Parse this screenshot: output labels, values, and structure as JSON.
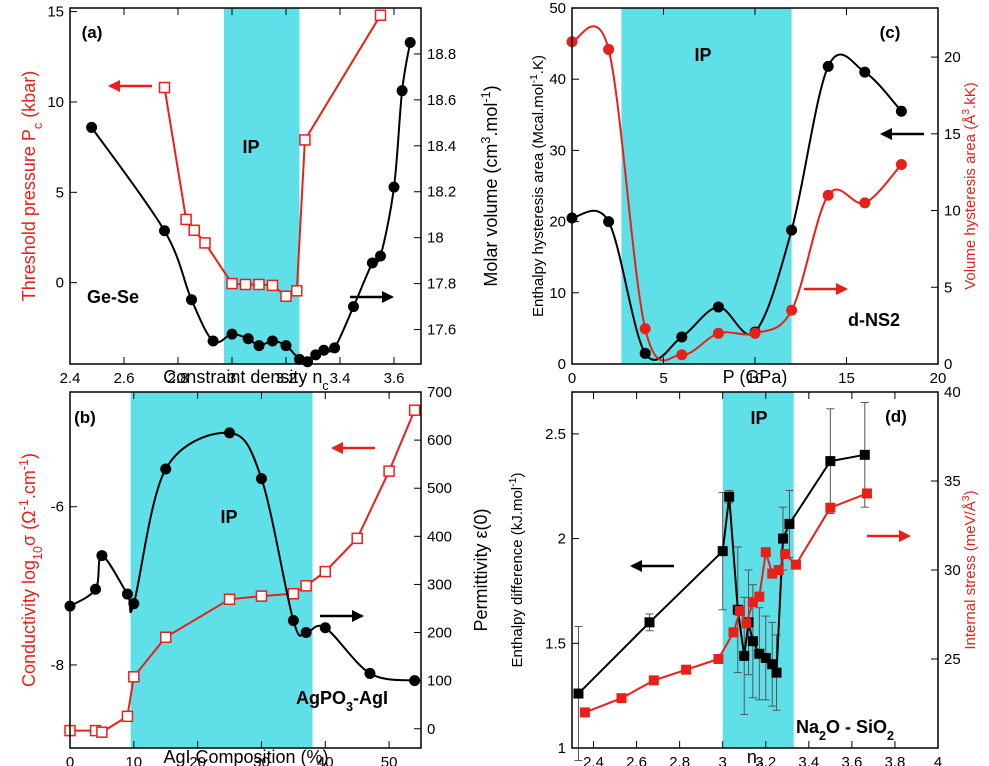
{
  "colors": {
    "black": "#000000",
    "red": "#e8201a",
    "band": "#5fe0e8"
  },
  "chart_data": [
    {
      "type": "line",
      "panel": "(a)",
      "system": "Ge-Se",
      "band_label": "IP",
      "xlabel": "Constraint density n",
      "xlabel_sub": "c",
      "ylabel_left": "Threshold pressure P",
      "ylabel_left_sub": "c",
      "ylabel_left_tail": " (kbar)",
      "ylabel_right": "Molar volume (cm",
      "ylabel_right_sup1": "3",
      "ylabel_right_mid": ".mol",
      "ylabel_right_sup2": "-1",
      "ylabel_right_tail": ")",
      "xlim": [
        2.4,
        3.7
      ],
      "ylim_left": [
        -4.5,
        15.2
      ],
      "ylim_right": [
        17.45,
        19.0
      ],
      "xticks": [
        2.4,
        2.6,
        2.8,
        3.0,
        3.2,
        3.4,
        3.6
      ],
      "xtick_labels": [
        "2.4",
        "2.6",
        "2.8",
        "3",
        "3.2",
        "3.4",
        "3.6"
      ],
      "yticks_left": [
        0,
        5,
        10,
        15
      ],
      "ytick_labels_left": [
        "0",
        "5",
        "10",
        "15"
      ],
      "yticks_right": [
        17.6,
        17.8,
        18.0,
        18.2,
        18.4,
        18.6,
        18.8
      ],
      "ytick_labels_right": [
        "17.6",
        "17.8",
        "18",
        "18.2",
        "18.4",
        "18.6",
        "18.8"
      ],
      "band": [
        2.97,
        3.25
      ],
      "series": [
        {
          "axis": "left",
          "color": "red",
          "marker": "open-square",
          "x": [
            2.75,
            2.83,
            2.86,
            2.9,
            3.0,
            3.05,
            3.1,
            3.15,
            3.2,
            3.24,
            3.27,
            3.55
          ],
          "y": [
            10.8,
            3.5,
            2.9,
            2.2,
            -0.05,
            -0.1,
            -0.1,
            -0.15,
            -0.75,
            -0.45,
            7.9,
            14.8
          ]
        },
        {
          "axis": "right",
          "color": "black",
          "marker": "filled-circle",
          "x": [
            2.48,
            2.75,
            2.85,
            2.93,
            3.0,
            3.06,
            3.1,
            3.15,
            3.2,
            3.25,
            3.28,
            3.31,
            3.34,
            3.38,
            3.45,
            3.52,
            3.55,
            3.6,
            3.63,
            3.66
          ],
          "y": [
            18.48,
            18.03,
            17.73,
            17.55,
            17.58,
            17.56,
            17.53,
            17.55,
            17.53,
            17.47,
            17.46,
            17.49,
            17.51,
            17.52,
            17.7,
            17.89,
            17.92,
            18.22,
            18.64,
            18.85
          ]
        }
      ],
      "arrows": [
        {
          "color": "red",
          "direction": "left"
        },
        {
          "color": "black",
          "direction": "right"
        }
      ]
    },
    {
      "type": "line",
      "panel": "(c)",
      "system": "d-NS2",
      "band_label": "IP",
      "xlabel": "P (GPa)",
      "ylabel_left": "Enthalpy hysteresis area (Mcal.mol",
      "ylabel_left_sup": "-1",
      "ylabel_left_tail": ".K)",
      "ylabel_right": "Volume hysteresis area (Å",
      "ylabel_right_sup": "3",
      "ylabel_right_tail": ".kK)",
      "xlim": [
        0,
        20
      ],
      "ylim_left": [
        0,
        50
      ],
      "ylim_right": [
        0,
        23.2
      ],
      "xticks": [
        0,
        5,
        10,
        15,
        20
      ],
      "xtick_labels": [
        "0",
        "5",
        "10",
        "15",
        "20"
      ],
      "yticks_left": [
        0,
        10,
        20,
        30,
        40,
        50
      ],
      "ytick_labels_left": [
        "0",
        "10",
        "20",
        "30",
        "40",
        "50"
      ],
      "yticks_right": [
        0,
        5,
        10,
        15,
        20
      ],
      "ytick_labels_right": [
        "0",
        "5",
        "10",
        "15",
        "20"
      ],
      "band": [
        2.7,
        12.0
      ],
      "series": [
        {
          "axis": "left",
          "color": "black",
          "marker": "filled-circle",
          "x": [
            0,
            2,
            4,
            6,
            8,
            10,
            12,
            14,
            16,
            18
          ],
          "y": [
            20.5,
            20.0,
            1.5,
            3.8,
            8.0,
            4.5,
            18.8,
            41.8,
            41.0,
            35.5
          ]
        },
        {
          "axis": "right",
          "color": "red",
          "marker": "filled-circle",
          "x": [
            0,
            2,
            4,
            6,
            8,
            10,
            12,
            14,
            16,
            18
          ],
          "y": [
            21.0,
            20.5,
            2.3,
            0.6,
            2.0,
            2.0,
            3.5,
            11.0,
            10.5,
            13.0
          ]
        }
      ],
      "arrows": [
        {
          "color": "black",
          "direction": "left"
        },
        {
          "color": "red",
          "direction": "right"
        }
      ]
    },
    {
      "type": "line",
      "panel": "(b)",
      "system": "AgPO",
      "system_sub": "3",
      "system_tail": "-AgI",
      "band_label": "IP",
      "xlabel": "AgI Composition (%)",
      "ylabel_left": "Conductivity log",
      "ylabel_left_sub": "10",
      "ylabel_left_mid": "σ (Ω",
      "ylabel_left_sup1": "-1",
      "ylabel_left_mid2": ".cm",
      "ylabel_left_sup2": "-1",
      "ylabel_left_tail": ")",
      "ylabel_right": "Permittivity ε(0)",
      "xlim": [
        0,
        55
      ],
      "ylim_left": [
        -9.05,
        -4.55
      ],
      "ylim_right": [
        -40,
        700
      ],
      "xticks": [
        0,
        10,
        20,
        30,
        40,
        50
      ],
      "xtick_labels": [
        "0",
        "10",
        "20",
        "30",
        "40",
        "50"
      ],
      "yticks_left": [
        -8,
        -6
      ],
      "ytick_labels_left": [
        "-8",
        "-6"
      ],
      "yticks_right": [
        0,
        100,
        200,
        300,
        400,
        500,
        600,
        700
      ],
      "ytick_labels_right": [
        "0",
        "100",
        "200",
        "300",
        "400",
        "500",
        "600",
        "700"
      ],
      "band": [
        9.5,
        38
      ],
      "series": [
        {
          "axis": "left",
          "color": "red",
          "marker": "open-square",
          "x": [
            0,
            4,
            5,
            9,
            10,
            15,
            25,
            30,
            35,
            37,
            40,
            45,
            50,
            54
          ],
          "y": [
            -8.83,
            -8.83,
            -8.85,
            -8.65,
            -8.15,
            -7.65,
            -7.17,
            -7.13,
            -7.1,
            -7.0,
            -6.82,
            -6.4,
            -5.55,
            -4.78
          ]
        },
        {
          "axis": "right",
          "color": "black",
          "marker": "filled-circle",
          "x": [
            0,
            4,
            5,
            9,
            10,
            15,
            25,
            30,
            35,
            37,
            40,
            47,
            54
          ],
          "y": [
            255,
            290,
            360,
            280,
            260,
            540,
            615,
            520,
            225,
            200,
            210,
            115,
            100
          ]
        }
      ],
      "arrows": [
        {
          "color": "red",
          "direction": "left"
        },
        {
          "color": "black",
          "direction": "right"
        }
      ]
    },
    {
      "type": "line",
      "panel": "(d)",
      "system": "Na",
      "system_sub": "2",
      "system_tail": "O - SiO",
      "system_sub2": "2",
      "band_label": "IP",
      "xlabel": "n",
      "xlabel_sub": "c",
      "ylabel_left": "Enthalpy difference (kJ.mol",
      "ylabel_left_sup": "-1",
      "ylabel_left_tail": ")",
      "ylabel_right": "Internal stress (meV/Å",
      "ylabel_right_sup": "3",
      "ylabel_right_tail": ")",
      "xlim": [
        2.3,
        4.0
      ],
      "ylim_left": [
        1.0,
        2.7
      ],
      "ylim_right": [
        20,
        40
      ],
      "xticks": [
        2.4,
        2.6,
        2.8,
        3.0,
        3.2,
        3.4,
        3.6,
        3.8,
        4.0
      ],
      "xtick_labels": [
        "2.4",
        "2.6",
        "2.8",
        "3",
        "3.2",
        "3.4",
        "3.6",
        "3.8",
        "4"
      ],
      "yticks_left": [
        1.0,
        1.5,
        2.0,
        2.5
      ],
      "ytick_labels_left": [
        "1",
        "1.5",
        "2",
        "2.5"
      ],
      "yticks_right": [
        25,
        30,
        35,
        40
      ],
      "ytick_labels_right": [
        "25",
        "30",
        "35",
        "40"
      ],
      "band": [
        3.0,
        3.33
      ],
      "series": [
        {
          "axis": "left",
          "color": "black",
          "marker": "filled-square",
          "x": [
            2.33,
            2.66,
            3.0,
            3.03,
            3.07,
            3.1,
            3.12,
            3.14,
            3.17,
            3.2,
            3.23,
            3.25,
            3.28,
            3.31,
            3.5,
            3.66
          ],
          "y": [
            1.26,
            1.6,
            1.94,
            2.2,
            1.66,
            1.44,
            1.6,
            1.51,
            1.45,
            1.43,
            1.4,
            1.36,
            2.0,
            2.07,
            2.37,
            2.4
          ],
          "err": [
            0.32,
            0.04,
            0.28,
            0.03,
            0.3,
            0.28,
            0.25,
            0.27,
            0.22,
            0.2,
            0.2,
            0.18,
            0.15,
            0.16,
            0.25,
            0.25
          ]
        },
        {
          "axis": "right",
          "color": "red",
          "marker": "filled-square",
          "x": [
            2.36,
            2.53,
            2.68,
            2.83,
            2.98,
            3.05,
            3.08,
            3.11,
            3.14,
            3.17,
            3.2,
            3.23,
            3.26,
            3.29,
            3.34,
            3.5,
            3.67
          ],
          "y": [
            22.0,
            22.8,
            23.8,
            24.4,
            25.0,
            26.5,
            27.7,
            27.0,
            28.2,
            28.5,
            31.0,
            29.8,
            30.0,
            30.9,
            30.3,
            33.5,
            34.3
          ]
        }
      ],
      "arrows": [
        {
          "color": "black",
          "direction": "left"
        },
        {
          "color": "red",
          "direction": "right"
        }
      ]
    }
  ]
}
